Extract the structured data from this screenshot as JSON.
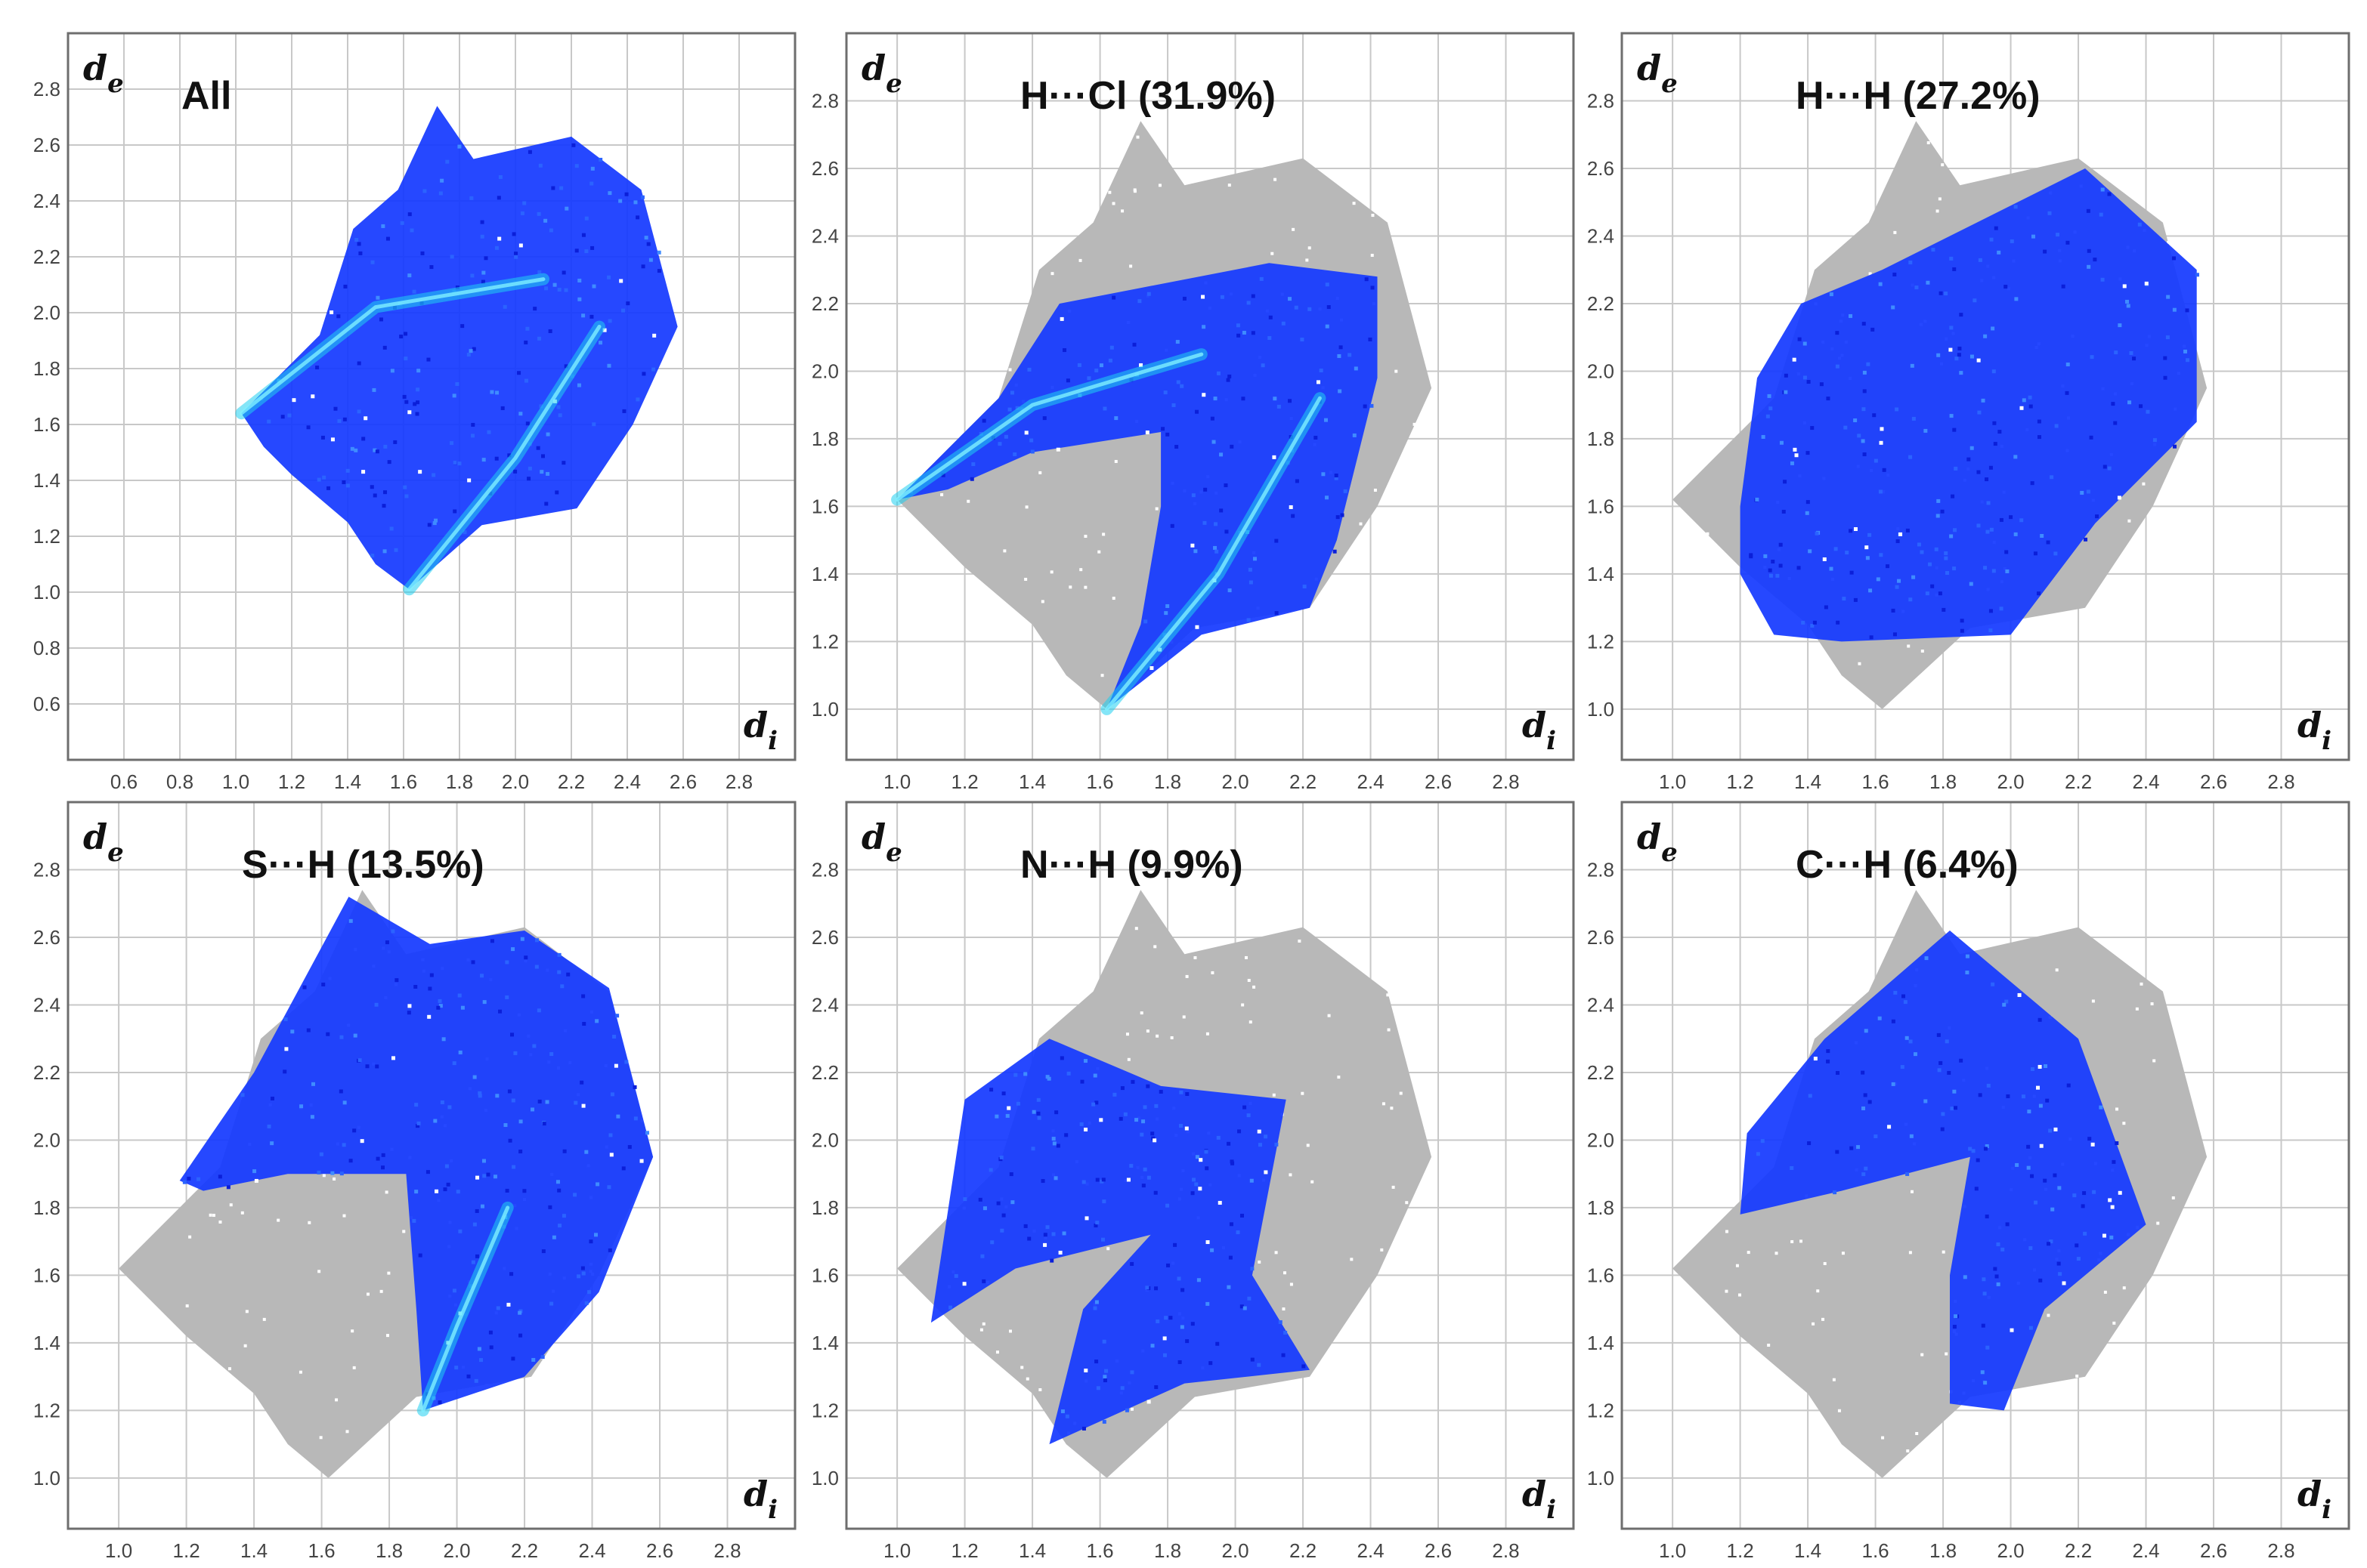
{
  "figure": "Hirshfeld surface 2D fingerprint plots",
  "colors": {
    "grid": "#c8c8c8",
    "frame": "#6e6e6e",
    "background_points": "#b8b8b8",
    "contact_points": "#1438ff",
    "dense_points": "#1fd0f0"
  },
  "chart_data": [
    {
      "type": "scatter",
      "title": "All",
      "xlabel": "d_i",
      "ylabel": "d_e",
      "xlim": [
        0.4,
        3.0
      ],
      "ylim": [
        0.4,
        3.0
      ],
      "xticks": [
        "0.6",
        "0.8",
        "1.0",
        "1.2",
        "1.4",
        "1.6",
        "1.8",
        "2.0",
        "2.2",
        "2.4",
        "2.6",
        "2.8"
      ],
      "yticks": [
        "0.6",
        "0.8",
        "1.0",
        "1.2",
        "1.4",
        "1.6",
        "1.8",
        "2.0",
        "2.2",
        "2.4",
        "2.6",
        "2.8"
      ],
      "background_region": [],
      "highlight_region": [
        [
          1.02,
          1.64
        ],
        [
          1.3,
          1.92
        ],
        [
          1.42,
          2.3
        ],
        [
          1.58,
          2.44
        ],
        [
          1.72,
          2.74
        ],
        [
          1.85,
          2.55
        ],
        [
          2.2,
          2.63
        ],
        [
          2.45,
          2.44
        ],
        [
          2.58,
          1.95
        ],
        [
          2.42,
          1.6
        ],
        [
          2.22,
          1.3
        ],
        [
          1.88,
          1.24
        ],
        [
          1.62,
          1.01
        ],
        [
          1.5,
          1.1
        ],
        [
          1.4,
          1.25
        ],
        [
          1.2,
          1.42
        ],
        [
          1.1,
          1.52
        ]
      ],
      "dense_ridges": [
        [
          [
            1.02,
            1.64
          ],
          [
            1.5,
            2.02
          ],
          [
            2.1,
            2.12
          ]
        ],
        [
          [
            1.62,
            1.01
          ],
          [
            2.0,
            1.48
          ],
          [
            2.3,
            1.95
          ]
        ]
      ]
    },
    {
      "type": "scatter",
      "title": "H···Cl (31.9%)",
      "xlabel": "d_i",
      "ylabel": "d_e",
      "xlim": [
        0.85,
        3.0
      ],
      "ylim": [
        0.85,
        3.0
      ],
      "xticks": [
        "1.0",
        "1.2",
        "1.4",
        "1.6",
        "1.8",
        "2.0",
        "2.2",
        "2.4",
        "2.6",
        "2.8"
      ],
      "yticks": [
        "1.0",
        "1.2",
        "1.4",
        "1.6",
        "1.8",
        "2.0",
        "2.2",
        "2.4",
        "2.6",
        "2.8"
      ],
      "background_region": [
        [
          1.0,
          1.62
        ],
        [
          1.3,
          1.92
        ],
        [
          1.42,
          2.3
        ],
        [
          1.58,
          2.44
        ],
        [
          1.72,
          2.74
        ],
        [
          1.85,
          2.55
        ],
        [
          2.2,
          2.63
        ],
        [
          2.45,
          2.44
        ],
        [
          2.58,
          1.95
        ],
        [
          2.42,
          1.6
        ],
        [
          2.22,
          1.3
        ],
        [
          1.88,
          1.24
        ],
        [
          1.62,
          1.0
        ],
        [
          1.5,
          1.1
        ],
        [
          1.4,
          1.25
        ],
        [
          1.2,
          1.42
        ],
        [
          1.1,
          1.52
        ]
      ],
      "highlight_region": [
        [
          1.0,
          1.62
        ],
        [
          1.3,
          1.92
        ],
        [
          1.48,
          2.2
        ],
        [
          2.1,
          2.32
        ],
        [
          2.42,
          2.28
        ],
        [
          2.42,
          1.98
        ],
        [
          2.3,
          1.5
        ],
        [
          2.22,
          1.3
        ],
        [
          1.9,
          1.22
        ],
        [
          1.62,
          1.0
        ],
        [
          1.72,
          1.25
        ],
        [
          1.78,
          1.6
        ],
        [
          1.78,
          1.82
        ],
        [
          1.4,
          1.76
        ],
        [
          1.15,
          1.65
        ]
      ],
      "dense_ridges": [
        [
          [
            1.0,
            1.62
          ],
          [
            1.4,
            1.9
          ],
          [
            1.9,
            2.05
          ]
        ],
        [
          [
            1.62,
            1.0
          ],
          [
            1.95,
            1.4
          ],
          [
            2.25,
            1.92
          ]
        ]
      ]
    },
    {
      "type": "scatter",
      "title": "H···H (27.2%)",
      "xlabel": "d_i",
      "ylabel": "d_e",
      "xlim": [
        0.85,
        3.0
      ],
      "ylim": [
        0.85,
        3.0
      ],
      "xticks": [
        "1.0",
        "1.2",
        "1.4",
        "1.6",
        "1.8",
        "2.0",
        "2.2",
        "2.4",
        "2.6",
        "2.8"
      ],
      "yticks": [
        "1.0",
        "1.2",
        "1.4",
        "1.6",
        "1.8",
        "2.0",
        "2.2",
        "2.4",
        "2.6",
        "2.8"
      ],
      "background_region": [
        [
          1.0,
          1.62
        ],
        [
          1.3,
          1.92
        ],
        [
          1.42,
          2.3
        ],
        [
          1.58,
          2.44
        ],
        [
          1.72,
          2.74
        ],
        [
          1.85,
          2.55
        ],
        [
          2.2,
          2.63
        ],
        [
          2.45,
          2.44
        ],
        [
          2.58,
          1.95
        ],
        [
          2.42,
          1.6
        ],
        [
          2.22,
          1.3
        ],
        [
          1.88,
          1.24
        ],
        [
          1.62,
          1.0
        ],
        [
          1.5,
          1.1
        ],
        [
          1.4,
          1.25
        ],
        [
          1.2,
          1.42
        ],
        [
          1.1,
          1.52
        ]
      ],
      "highlight_region": [
        [
          1.2,
          1.6
        ],
        [
          1.25,
          1.98
        ],
        [
          1.38,
          2.2
        ],
        [
          1.62,
          2.3
        ],
        [
          1.9,
          2.44
        ],
        [
          2.22,
          2.6
        ],
        [
          2.55,
          2.3
        ],
        [
          2.55,
          1.85
        ],
        [
          2.25,
          1.55
        ],
        [
          2.0,
          1.22
        ],
        [
          1.5,
          1.2
        ],
        [
          1.3,
          1.22
        ],
        [
          1.2,
          1.4
        ]
      ],
      "dense_ridges": []
    },
    {
      "type": "scatter",
      "title": "S···H (13.5%)",
      "xlabel": "d_i",
      "ylabel": "d_e",
      "xlim": [
        0.85,
        3.0
      ],
      "ylim": [
        0.85,
        3.0
      ],
      "xticks": [
        "1.0",
        "1.2",
        "1.4",
        "1.6",
        "1.8",
        "2.0",
        "2.2",
        "2.4",
        "2.6",
        "2.8"
      ],
      "yticks": [
        "1.0",
        "1.2",
        "1.4",
        "1.6",
        "1.8",
        "2.0",
        "2.2",
        "2.4",
        "2.6",
        "2.8"
      ],
      "background_region": [
        [
          1.0,
          1.62
        ],
        [
          1.3,
          1.92
        ],
        [
          1.42,
          2.3
        ],
        [
          1.58,
          2.44
        ],
        [
          1.72,
          2.74
        ],
        [
          1.85,
          2.55
        ],
        [
          2.2,
          2.63
        ],
        [
          2.45,
          2.44
        ],
        [
          2.58,
          1.95
        ],
        [
          2.42,
          1.6
        ],
        [
          2.22,
          1.3
        ],
        [
          1.88,
          1.24
        ],
        [
          1.62,
          1.0
        ],
        [
          1.5,
          1.1
        ],
        [
          1.4,
          1.25
        ],
        [
          1.2,
          1.42
        ],
        [
          1.1,
          1.52
        ]
      ],
      "highlight_region": [
        [
          1.18,
          1.88
        ],
        [
          1.4,
          2.2
        ],
        [
          1.68,
          2.72
        ],
        [
          1.92,
          2.58
        ],
        [
          2.2,
          2.62
        ],
        [
          2.45,
          2.45
        ],
        [
          2.58,
          1.95
        ],
        [
          2.42,
          1.55
        ],
        [
          2.2,
          1.3
        ],
        [
          1.9,
          1.2
        ],
        [
          1.88,
          1.5
        ],
        [
          1.85,
          1.9
        ],
        [
          1.5,
          1.9
        ],
        [
          1.25,
          1.85
        ]
      ],
      "dense_ridges": [
        [
          [
            1.9,
            1.2
          ],
          [
            2.0,
            1.45
          ],
          [
            2.15,
            1.8
          ]
        ]
      ]
    },
    {
      "type": "scatter",
      "title": "N···H (9.9%)",
      "xlabel": "d_i",
      "ylabel": "d_e",
      "xlim": [
        0.85,
        3.0
      ],
      "ylim": [
        0.85,
        3.0
      ],
      "xticks": [
        "1.0",
        "1.2",
        "1.4",
        "1.6",
        "1.8",
        "2.0",
        "2.2",
        "2.4",
        "2.6",
        "2.8"
      ],
      "yticks": [
        "1.0",
        "1.2",
        "1.4",
        "1.6",
        "1.8",
        "2.0",
        "2.2",
        "2.4",
        "2.6",
        "2.8"
      ],
      "background_region": [
        [
          1.0,
          1.62
        ],
        [
          1.3,
          1.92
        ],
        [
          1.42,
          2.3
        ],
        [
          1.58,
          2.44
        ],
        [
          1.72,
          2.74
        ],
        [
          1.85,
          2.55
        ],
        [
          2.2,
          2.63
        ],
        [
          2.45,
          2.44
        ],
        [
          2.58,
          1.95
        ],
        [
          2.42,
          1.6
        ],
        [
          2.22,
          1.3
        ],
        [
          1.88,
          1.24
        ],
        [
          1.62,
          1.0
        ],
        [
          1.5,
          1.1
        ],
        [
          1.4,
          1.25
        ],
        [
          1.2,
          1.42
        ],
        [
          1.1,
          1.52
        ]
      ],
      "highlight_region": [
        [
          1.1,
          1.46
        ],
        [
          1.2,
          2.12
        ],
        [
          1.45,
          2.3
        ],
        [
          1.78,
          2.16
        ],
        [
          2.15,
          2.12
        ],
        [
          2.05,
          1.6
        ],
        [
          2.22,
          1.32
        ],
        [
          1.85,
          1.28
        ],
        [
          1.45,
          1.1
        ],
        [
          1.55,
          1.5
        ],
        [
          1.75,
          1.72
        ],
        [
          1.35,
          1.62
        ]
      ],
      "dense_ridges": []
    },
    {
      "type": "scatter",
      "title": "C···H (6.4%)",
      "xlabel": "d_i",
      "ylabel": "d_e",
      "xlim": [
        0.85,
        3.0
      ],
      "ylim": [
        0.85,
        3.0
      ],
      "xticks": [
        "1.0",
        "1.2",
        "1.4",
        "1.6",
        "1.8",
        "2.0",
        "2.2",
        "2.4",
        "2.6",
        "2.8"
      ],
      "yticks": [
        "1.0",
        "1.2",
        "1.4",
        "1.6",
        "1.8",
        "2.0",
        "2.2",
        "2.4",
        "2.6",
        "2.8"
      ],
      "background_region": [
        [
          1.0,
          1.62
        ],
        [
          1.3,
          1.92
        ],
        [
          1.42,
          2.3
        ],
        [
          1.58,
          2.44
        ],
        [
          1.72,
          2.74
        ],
        [
          1.85,
          2.55
        ],
        [
          2.2,
          2.63
        ],
        [
          2.45,
          2.44
        ],
        [
          2.58,
          1.95
        ],
        [
          2.42,
          1.6
        ],
        [
          2.22,
          1.3
        ],
        [
          1.88,
          1.24
        ],
        [
          1.62,
          1.0
        ],
        [
          1.5,
          1.1
        ],
        [
          1.4,
          1.25
        ],
        [
          1.2,
          1.42
        ],
        [
          1.1,
          1.52
        ]
      ],
      "highlight_region": [
        [
          1.2,
          1.78
        ],
        [
          1.22,
          2.02
        ],
        [
          1.45,
          2.3
        ],
        [
          1.82,
          2.62
        ],
        [
          2.2,
          2.3
        ],
        [
          2.4,
          1.75
        ],
        [
          2.1,
          1.5
        ],
        [
          1.98,
          1.2
        ],
        [
          1.82,
          1.22
        ],
        [
          1.82,
          1.6
        ],
        [
          1.88,
          1.95
        ],
        [
          1.5,
          1.85
        ]
      ],
      "dense_ridges": []
    }
  ]
}
